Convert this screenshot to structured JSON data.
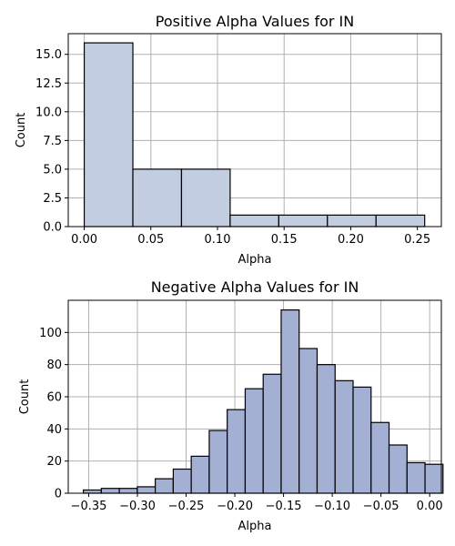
{
  "chart_data": [
    {
      "type": "histogram",
      "title": "Positive Alpha Values for IN",
      "xlabel": "Alpha",
      "ylabel": "Count",
      "xlim": [
        -0.012,
        0.268
      ],
      "ylim": [
        0,
        16.8
      ],
      "xticks": [
        0.0,
        0.05,
        0.1,
        0.15,
        0.2,
        0.25
      ],
      "xtick_labels": [
        "0.00",
        "0.05",
        "0.10",
        "0.15",
        "0.20",
        "0.25"
      ],
      "yticks": [
        0,
        2.5,
        5.0,
        7.5,
        10.0,
        12.5,
        15.0
      ],
      "ytick_labels": [
        "0.0",
        "2.5",
        "5.0",
        "7.5",
        "10.0",
        "12.5",
        "15.0"
      ],
      "grid": true,
      "bar_color": "#c3cde2",
      "bins": [
        {
          "x0": 0.0,
          "x1": 0.0365,
          "count": 16
        },
        {
          "x0": 0.0365,
          "x1": 0.073,
          "count": 5
        },
        {
          "x0": 0.073,
          "x1": 0.1095,
          "count": 5
        },
        {
          "x0": 0.1095,
          "x1": 0.146,
          "count": 1
        },
        {
          "x0": 0.146,
          "x1": 0.1825,
          "count": 1
        },
        {
          "x0": 0.1825,
          "x1": 0.219,
          "count": 1
        },
        {
          "x0": 0.219,
          "x1": 0.2555,
          "count": 1
        }
      ]
    },
    {
      "type": "histogram",
      "title": "Negative Alpha Values for IN",
      "xlabel": "Alpha",
      "ylabel": "Count",
      "xlim": [
        -0.371,
        0.012
      ],
      "ylim": [
        0,
        120
      ],
      "xticks": [
        -0.35,
        -0.3,
        -0.25,
        -0.2,
        -0.15,
        -0.1,
        -0.05,
        0.0
      ],
      "xtick_labels": [
        "−0.35",
        "−0.30",
        "−0.25",
        "−0.20",
        "−0.15",
        "−0.10",
        "−0.05",
        "0.00"
      ],
      "yticks": [
        0,
        20,
        40,
        60,
        80,
        100
      ],
      "ytick_labels": [
        "0",
        "20",
        "40",
        "60",
        "80",
        "100"
      ],
      "grid": true,
      "bar_color": "#a4b0d3",
      "bin_start": -0.3555,
      "bin_width": 0.01846,
      "counts": [
        2,
        3,
        3,
        4,
        9,
        15,
        23,
        39,
        52,
        65,
        74,
        114,
        90,
        80,
        70,
        66,
        44,
        30,
        19,
        18
      ]
    }
  ]
}
